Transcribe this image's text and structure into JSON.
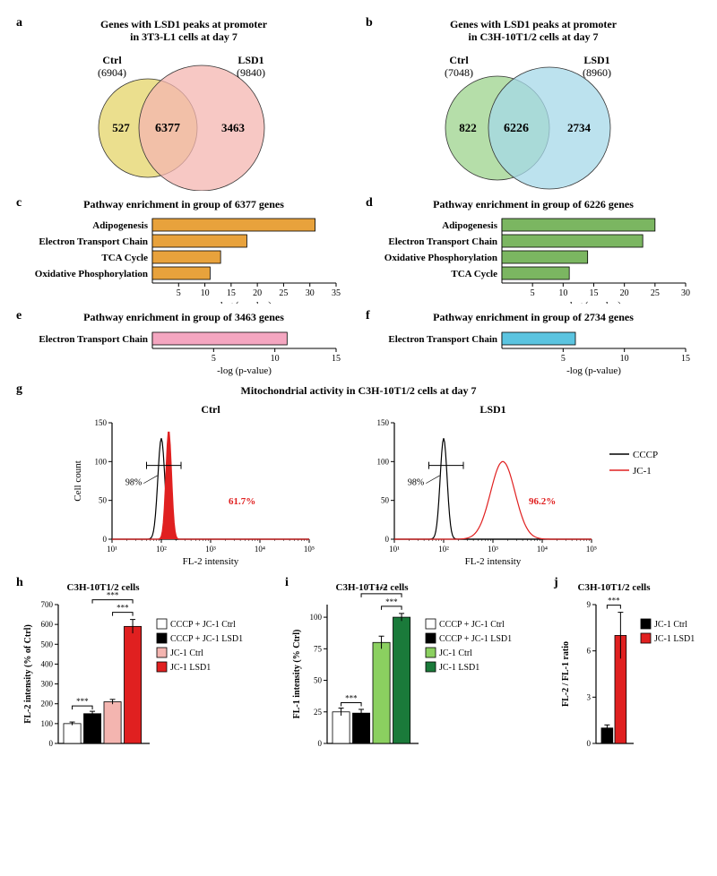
{
  "panel_a": {
    "label": "a",
    "title": "Genes with LSD1 peaks at promoter\nin 3T3-L1 cells at day 7",
    "left_label": "Ctrl",
    "left_count": "(6904)",
    "right_label": "LSD1",
    "right_count": "(9840)",
    "left_only": "527",
    "overlap": "6377",
    "right_only": "3463",
    "left_color": "#e8d97a",
    "right_color": "#f4b5b0",
    "overlap_color": "#e8a582",
    "stroke": "#333333"
  },
  "panel_b": {
    "label": "b",
    "title": "Genes with LSD1 peaks at promoter\nin C3H-10T1/2 cells at day 7",
    "left_label": "Ctrl",
    "left_count": "(7048)",
    "right_label": "LSD1",
    "right_count": "(8960)",
    "left_only": "822",
    "overlap": "6226",
    "right_only": "2734",
    "left_color": "#a8d89a",
    "right_color": "#a6d8e8",
    "overlap_color": "#88ccb8",
    "stroke": "#333333"
  },
  "panel_c": {
    "label": "c",
    "title": "Pathway enrichment in group of 6377 genes",
    "categories": [
      "Adipogenesis",
      "Electron Transport Chain",
      "TCA Cycle",
      "Oxidative Phosphorylation"
    ],
    "values": [
      31,
      18,
      13,
      11
    ],
    "xlim": [
      0,
      35
    ],
    "xticks": [
      5,
      10,
      15,
      20,
      25,
      30,
      35
    ],
    "xlabel": "-log (p-value)",
    "bar_color": "#e8a23c",
    "border": "#000000"
  },
  "panel_d": {
    "label": "d",
    "title": "Pathway enrichment in group of 6226 genes",
    "categories": [
      "Adipogenesis",
      "Electron Transport Chain",
      "Oxidative Phosphorylation",
      "TCA Cycle"
    ],
    "values": [
      25,
      23,
      14,
      11
    ],
    "xlim": [
      0,
      30
    ],
    "xticks": [
      5,
      10,
      15,
      20,
      25,
      30
    ],
    "xlabel": "-log (p-value)",
    "bar_color": "#7bb661",
    "border": "#000000"
  },
  "panel_e": {
    "label": "e",
    "title": "Pathway enrichment in group of 3463 genes",
    "categories": [
      "Electron Transport Chain"
    ],
    "values": [
      11
    ],
    "xlim": [
      0,
      15
    ],
    "xticks": [
      5,
      10,
      15
    ],
    "xlabel": "-log (p-value)",
    "bar_color": "#f4a6c0",
    "border": "#000000"
  },
  "panel_f": {
    "label": "f",
    "title": "Pathway enrichment in group of 2734 genes",
    "categories": [
      "Electron Transport Chain"
    ],
    "values": [
      6
    ],
    "xlim": [
      0,
      15
    ],
    "xticks": [
      5,
      10,
      15
    ],
    "xlabel": "-log (p-value)",
    "bar_color": "#5bc4e0",
    "border": "#000000"
  },
  "panel_g": {
    "label": "g",
    "title": "Mitochondrial activity in C3H-10T1/2 cells at day 7",
    "left_sub": "Ctrl",
    "right_sub": "LSD1",
    "ylabel": "Cell count",
    "xlabel": "FL-2 intensity",
    "yticks": [
      0,
      50,
      100,
      150
    ],
    "xticks": [
      "10¹",
      "10²",
      "10³",
      "10⁴",
      "10⁵"
    ],
    "cccp_color": "#000000",
    "jc1_color": "#e02020",
    "left_cccp_pct": "98%",
    "left_jc1_pct": "61.7%",
    "right_cccp_pct": "98%",
    "right_jc1_pct": "96.2%",
    "legend_cccp": "CCCP",
    "legend_jc1": "JC-1"
  },
  "panel_h": {
    "label": "h",
    "title": "C3H-10T1/2 cells",
    "ylabel": "FL-2 intensity (% of Ctrl)",
    "categories": [
      "CCCP + JC-1 Ctrl",
      "CCCP + JC-1 LSD1",
      "JC-1 Ctrl",
      "JC-1 LSD1"
    ],
    "values": [
      100,
      150,
      210,
      590
    ],
    "errors": [
      8,
      12,
      12,
      35
    ],
    "colors": [
      "#ffffff",
      "#000000",
      "#f4b5b0",
      "#e02020"
    ],
    "ylim": [
      0,
      700
    ],
    "yticks": [
      0,
      100,
      200,
      300,
      400,
      500,
      600,
      700
    ],
    "sig": "***"
  },
  "panel_i": {
    "label": "i",
    "title": "C3H-10T1/2 cells",
    "ylabel": "FL-1 intensity (% Ctrl)",
    "categories": [
      "CCCP + JC-1 Ctrl",
      "CCCP + JC-1 LSD1",
      "JC-1 Ctrl",
      "JC-1 LSD1"
    ],
    "values": [
      25,
      24,
      80,
      100
    ],
    "errors": [
      3,
      3,
      5,
      3
    ],
    "colors": [
      "#ffffff",
      "#000000",
      "#8bd060",
      "#1a7a3a"
    ],
    "ylim": [
      0,
      110
    ],
    "yticks": [
      0,
      25,
      50,
      75,
      100
    ],
    "sig": "***"
  },
  "panel_j": {
    "label": "j",
    "title": "C3H-10T1/2 cells",
    "ylabel": "FL-2 / FL-1 ratio",
    "categories": [
      "JC-1 Ctrl",
      "JC-1 LSD1"
    ],
    "values": [
      1,
      7
    ],
    "errors": [
      0.2,
      1.5
    ],
    "colors": [
      "#000000",
      "#e02020"
    ],
    "ylim": [
      0,
      9
    ],
    "yticks": [
      0,
      3,
      6,
      9
    ],
    "sig": "***"
  }
}
